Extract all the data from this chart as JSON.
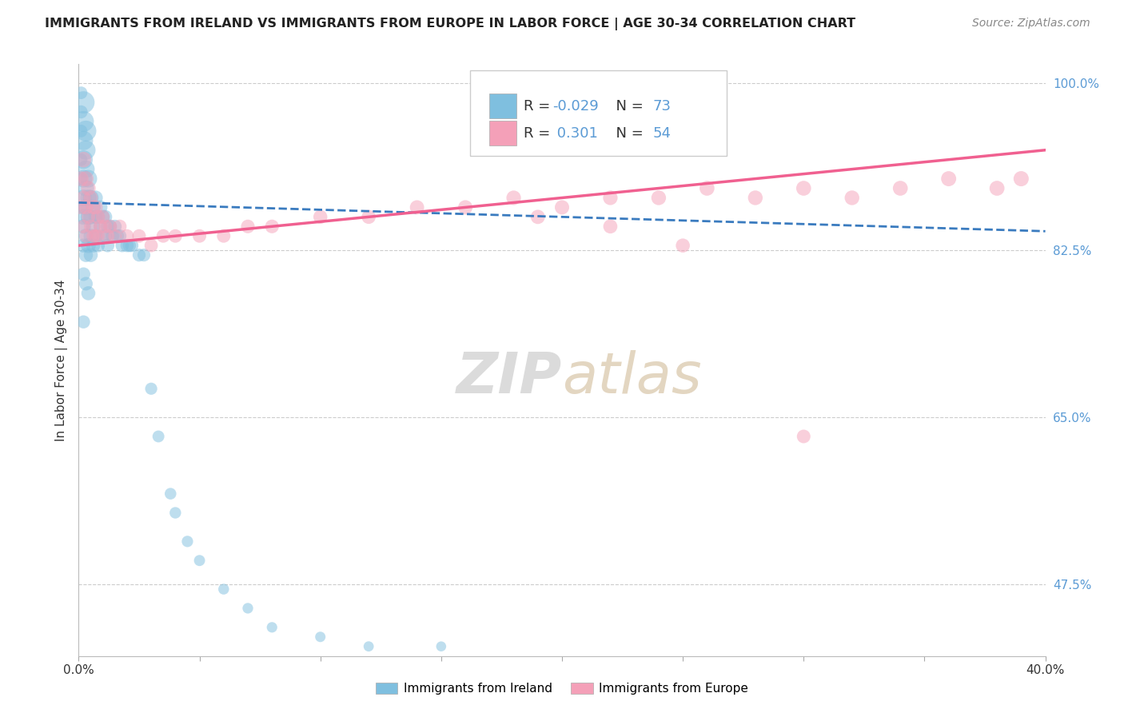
{
  "title": "IMMIGRANTS FROM IRELAND VS IMMIGRANTS FROM EUROPE IN LABOR FORCE | AGE 30-34 CORRELATION CHART",
  "source": "Source: ZipAtlas.com",
  "ylabel": "In Labor Force | Age 30-34",
  "x_min": 0.0,
  "x_max": 0.4,
  "y_min": 0.4,
  "y_max": 1.02,
  "y_ticks_right": [
    1.0,
    0.825,
    0.65,
    0.475
  ],
  "y_tick_labels_right": [
    "100.0%",
    "82.5%",
    "65.0%",
    "47.5%"
  ],
  "ireland_R": -0.029,
  "ireland_N": 73,
  "europe_R": 0.301,
  "europe_N": 54,
  "ireland_color": "#7fbfdf",
  "europe_color": "#f4a0b8",
  "ireland_line_color": "#3a7bbf",
  "europe_line_color": "#f06090",
  "background_color": "#ffffff",
  "grid_color": "#cccccc",
  "legend_label_ireland": "Immigrants from Ireland",
  "legend_label_europe": "Immigrants from Europe",
  "ireland_scatter_x": [
    0.001,
    0.001,
    0.001,
    0.001,
    0.001,
    0.001,
    0.002,
    0.002,
    0.002,
    0.002,
    0.002,
    0.002,
    0.002,
    0.002,
    0.002,
    0.002,
    0.002,
    0.003,
    0.003,
    0.003,
    0.003,
    0.003,
    0.003,
    0.003,
    0.003,
    0.004,
    0.004,
    0.004,
    0.004,
    0.004,
    0.005,
    0.005,
    0.005,
    0.005,
    0.006,
    0.006,
    0.006,
    0.007,
    0.007,
    0.007,
    0.008,
    0.008,
    0.009,
    0.009,
    0.01,
    0.01,
    0.011,
    0.011,
    0.012,
    0.012,
    0.013,
    0.014,
    0.015,
    0.016,
    0.017,
    0.018,
    0.02,
    0.021,
    0.022,
    0.025,
    0.027,
    0.03,
    0.033,
    0.038,
    0.04,
    0.045,
    0.05,
    0.06,
    0.07,
    0.08,
    0.1,
    0.12,
    0.15
  ],
  "ireland_scatter_y": [
    0.87,
    0.9,
    0.92,
    0.95,
    0.97,
    0.99,
    0.86,
    0.88,
    0.9,
    0.92,
    0.94,
    0.96,
    0.98,
    0.85,
    0.83,
    0.8,
    0.75,
    0.87,
    0.89,
    0.91,
    0.93,
    0.95,
    0.84,
    0.82,
    0.79,
    0.88,
    0.9,
    0.86,
    0.83,
    0.78,
    0.88,
    0.86,
    0.84,
    0.82,
    0.87,
    0.85,
    0.83,
    0.88,
    0.86,
    0.84,
    0.86,
    0.83,
    0.87,
    0.85,
    0.86,
    0.84,
    0.86,
    0.84,
    0.85,
    0.83,
    0.85,
    0.84,
    0.85,
    0.84,
    0.84,
    0.83,
    0.83,
    0.83,
    0.83,
    0.82,
    0.82,
    0.68,
    0.63,
    0.57,
    0.55,
    0.52,
    0.5,
    0.47,
    0.45,
    0.43,
    0.42,
    0.41,
    0.41
  ],
  "europe_scatter_x": [
    0.001,
    0.001,
    0.002,
    0.002,
    0.002,
    0.003,
    0.003,
    0.003,
    0.004,
    0.004,
    0.005,
    0.005,
    0.006,
    0.006,
    0.007,
    0.007,
    0.008,
    0.008,
    0.009,
    0.01,
    0.011,
    0.012,
    0.013,
    0.015,
    0.017,
    0.02,
    0.025,
    0.03,
    0.035,
    0.04,
    0.05,
    0.06,
    0.07,
    0.08,
    0.1,
    0.12,
    0.14,
    0.16,
    0.18,
    0.2,
    0.22,
    0.24,
    0.26,
    0.28,
    0.3,
    0.32,
    0.34,
    0.36,
    0.38,
    0.39,
    0.3,
    0.25,
    0.22,
    0.19
  ],
  "europe_scatter_y": [
    0.87,
    0.9,
    0.85,
    0.88,
    0.92,
    0.84,
    0.87,
    0.9,
    0.86,
    0.89,
    0.85,
    0.88,
    0.84,
    0.87,
    0.84,
    0.87,
    0.84,
    0.86,
    0.85,
    0.86,
    0.85,
    0.84,
    0.85,
    0.84,
    0.85,
    0.84,
    0.84,
    0.83,
    0.84,
    0.84,
    0.84,
    0.84,
    0.85,
    0.85,
    0.86,
    0.86,
    0.87,
    0.87,
    0.88,
    0.87,
    0.88,
    0.88,
    0.89,
    0.88,
    0.89,
    0.88,
    0.89,
    0.9,
    0.89,
    0.9,
    0.63,
    0.83,
    0.85,
    0.86
  ],
  "ireland_sizes": [
    130,
    140,
    130,
    130,
    140,
    130,
    200,
    220,
    250,
    280,
    300,
    350,
    400,
    180,
    160,
    150,
    140,
    200,
    220,
    250,
    300,
    350,
    180,
    160,
    150,
    220,
    250,
    200,
    180,
    160,
    200,
    180,
    170,
    160,
    180,
    170,
    160,
    170,
    160,
    155,
    160,
    150,
    160,
    155,
    155,
    150,
    155,
    150,
    150,
    145,
    150,
    148,
    148,
    145,
    145,
    143,
    142,
    140,
    140,
    138,
    135,
    120,
    115,
    110,
    108,
    105,
    100,
    95,
    92,
    90,
    88,
    85,
    82
  ],
  "europe_sizes": [
    160,
    180,
    150,
    170,
    200,
    145,
    165,
    190,
    155,
    175,
    148,
    168,
    145,
    165,
    148,
    168,
    145,
    160,
    155,
    158,
    155,
    150,
    155,
    148,
    152,
    148,
    148,
    145,
    148,
    148,
    148,
    148,
    152,
    152,
    158,
    160,
    165,
    168,
    172,
    168,
    172,
    175,
    180,
    175,
    180,
    175,
    180,
    185,
    182,
    188,
    150,
    160,
    162,
    165
  ]
}
